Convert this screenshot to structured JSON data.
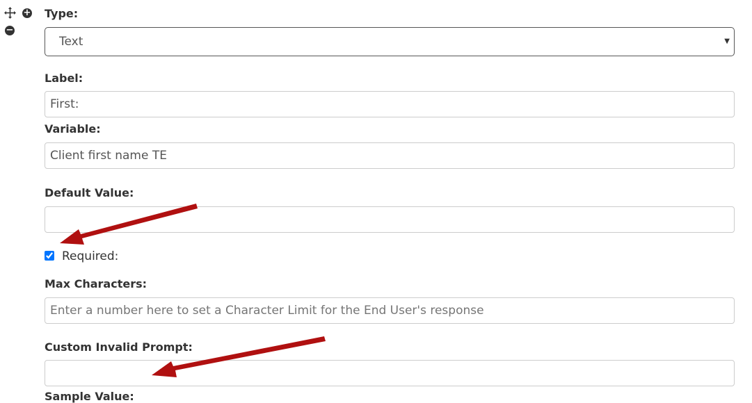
{
  "icons": {
    "move": "move-arrows-icon",
    "add": "plus-circle-icon",
    "remove": "minus-circle-icon"
  },
  "type": {
    "label": "Type:",
    "value": "Text"
  },
  "label_field": {
    "label": "Label:",
    "value": "First:"
  },
  "variable": {
    "label": "Variable:",
    "value": "Client first name TE"
  },
  "default_value": {
    "label": "Default Value:",
    "value": ""
  },
  "required": {
    "label": "Required:",
    "checked": true
  },
  "max_characters": {
    "label": "Max Characters:",
    "placeholder": "Enter a number here to set a Character Limit for the End User's response"
  },
  "custom_invalid_prompt": {
    "label": "Custom Invalid Prompt:",
    "value": ""
  },
  "sample_value": {
    "label": "Sample Value:"
  },
  "annotation_color": "#b01010"
}
